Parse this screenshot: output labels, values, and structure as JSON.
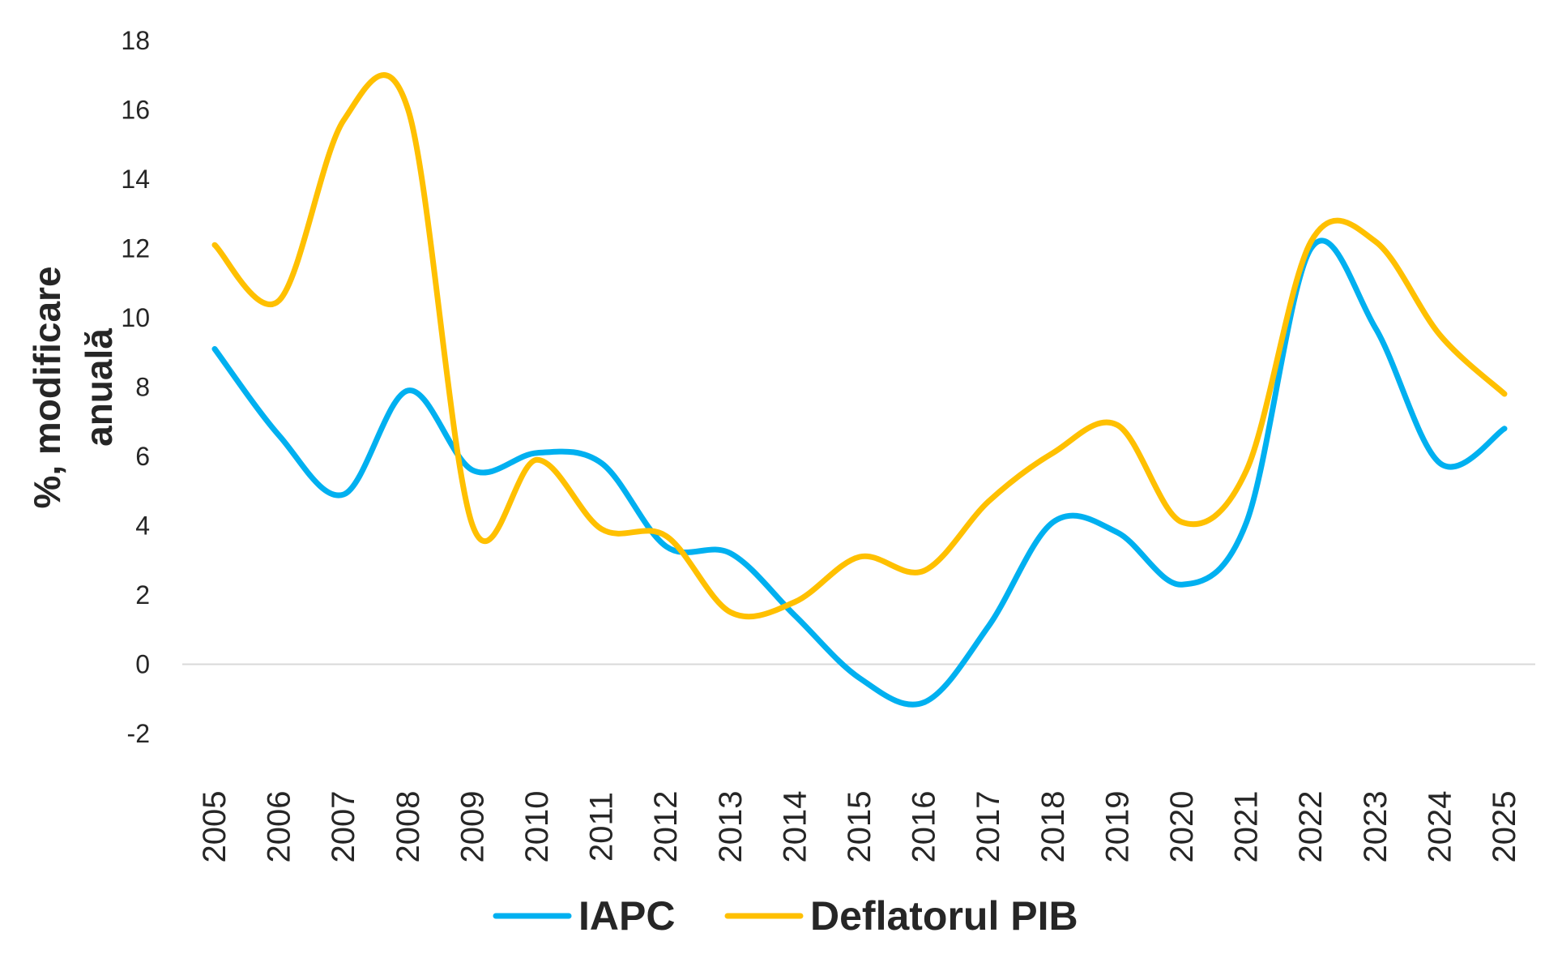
{
  "chart_data": {
    "type": "line",
    "title": "",
    "xlabel": "",
    "ylabel_lines": [
      "%, modificare",
      "anuală"
    ],
    "ylim": [
      -2,
      18
    ],
    "yticks": [
      -2,
      0,
      2,
      4,
      6,
      8,
      10,
      12,
      14,
      16,
      18
    ],
    "ytick_labels": [
      "-2",
      "0",
      "2",
      "4",
      "6",
      "8",
      "10",
      "12",
      "14",
      "16",
      "18"
    ],
    "categories": [
      "2005",
      "2006",
      "2007",
      "2008",
      "2009",
      "2010",
      "2011",
      "2012",
      "2013",
      "2014",
      "2015",
      "2016",
      "2017",
      "2018",
      "2019",
      "2020",
      "2021",
      "2022",
      "2023",
      "2024",
      "2025"
    ],
    "series": [
      {
        "name": "IAPC",
        "color": "#00B0F0",
        "values": [
          9.1,
          6.6,
          4.9,
          7.9,
          5.6,
          6.1,
          5.8,
          3.4,
          3.2,
          1.4,
          -0.4,
          -1.1,
          1.1,
          4.1,
          3.8,
          2.3,
          4.1,
          12.0,
          9.7,
          5.8,
          6.8
        ]
      },
      {
        "name": "Deflatorul PIB",
        "color": "#FFC000",
        "values": [
          12.1,
          10.5,
          15.7,
          16.0,
          4.0,
          5.9,
          3.9,
          3.7,
          1.5,
          1.8,
          3.1,
          2.7,
          4.7,
          6.1,
          6.9,
          4.1,
          5.6,
          12.2,
          12.2,
          9.5,
          7.8
        ]
      }
    ],
    "grid": false,
    "legend_position": "bottom"
  }
}
